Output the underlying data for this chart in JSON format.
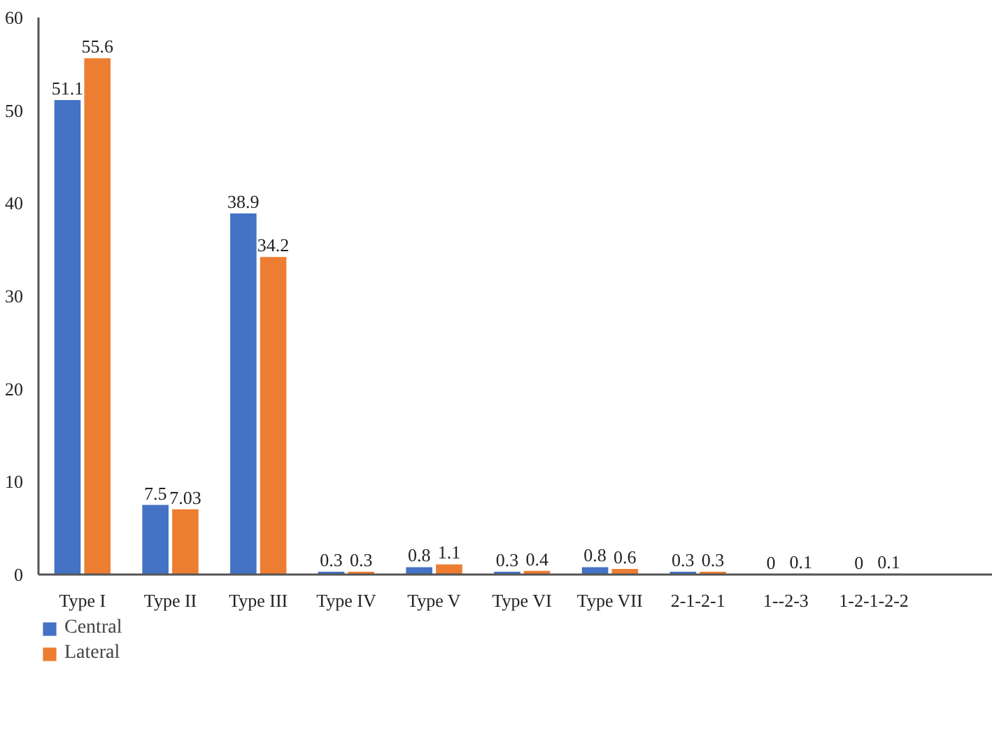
{
  "chart_data": {
    "type": "bar",
    "categories": [
      "Type I",
      "Type II",
      "Type III",
      "Type IV",
      "Type V",
      "Type VI",
      "Type VII",
      "2-1-2-1",
      "1--2-3",
      "1-2-1-2-2"
    ],
    "series": [
      {
        "name": "Central",
        "color": "#4472c4",
        "values": [
          51.1,
          7.5,
          38.9,
          0.3,
          0.8,
          0.3,
          0.8,
          0.3,
          0,
          0
        ]
      },
      {
        "name": "Lateral",
        "color": "#ed7d31",
        "values": [
          55.6,
          7.03,
          34.2,
          0.3,
          1.1,
          0.4,
          0.6,
          0.3,
          0.1,
          0.1
        ]
      }
    ],
    "ylim": [
      0,
      60
    ],
    "yticks": [
      0,
      10,
      20,
      30,
      40,
      50,
      60
    ],
    "grid": false,
    "legend": "bottom left",
    "data_labels": true
  }
}
